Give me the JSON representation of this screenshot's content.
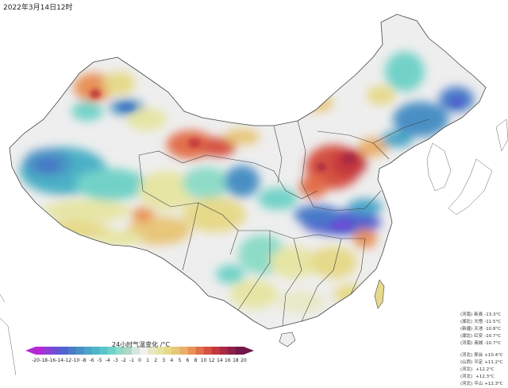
{
  "header": {
    "timestamp": "2022年3月14日12时"
  },
  "legend": {
    "title": "24小时气温变化 /°C",
    "ticks": [
      "-20",
      "-18",
      "-16",
      "-14",
      "-12",
      "-10",
      "-8",
      "-6",
      "-5",
      "-4",
      "-3",
      "-2",
      "-1",
      "0",
      "1",
      "2",
      "3",
      "4",
      "5",
      "6",
      "8",
      "10",
      "12",
      "14",
      "16",
      "18",
      "20"
    ],
    "colors": [
      "#b32ad4",
      "#8f3fd8",
      "#6d4fd6",
      "#5362cf",
      "#4a7ac8",
      "#4a8fc4",
      "#4aa4c6",
      "#4cb6c8",
      "#5ac6c8",
      "#72d2c8",
      "#8edbc8",
      "#acd8c4",
      "#d6e7dd",
      "#f1f1f1",
      "#e8e9c6",
      "#e6e5a4",
      "#e6d98a",
      "#e8c67a",
      "#eaaf6a",
      "#e89258",
      "#e2704b",
      "#d55142",
      "#c2393d",
      "#a82a45",
      "#8e1f4a",
      "#73174a"
    ]
  },
  "stations": {
    "drops": [
      {
        "prov": "(河南)",
        "name": "新县",
        "value": "-13.3°C"
      },
      {
        "prov": "(湖北)",
        "name": "大悟",
        "value": "-11.5°C"
      },
      {
        "prov": "(新疆)",
        "name": "天池",
        "value": "-10.8°C"
      },
      {
        "prov": "(湖北)",
        "name": "红安",
        "value": "-10.7°C"
      },
      {
        "prov": "(河南)",
        "name": "商城",
        "value": "-10.7°C"
      }
    ],
    "rises": [
      {
        "prov": "(河北)",
        "name": "邢台",
        "value": "+10.4°C"
      },
      {
        "prov": "(山西)",
        "name": "平定",
        "value": "+11.2°C"
      },
      {
        "prov": "(河北)",
        "name": "",
        "value": "+12.2°C"
      },
      {
        "prov": "(河北)",
        "name": "",
        "value": "+12.3°C"
      },
      {
        "prov": "(河北)",
        "name": "平山",
        "value": "+12.3°C"
      }
    ]
  }
}
